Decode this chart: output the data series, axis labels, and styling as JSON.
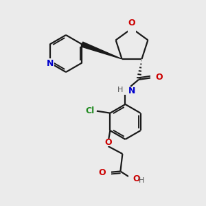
{
  "bg_color": "#ebebeb",
  "bond_color": "#1a1a1a",
  "O_color": "#cc0000",
  "N_color": "#0000cc",
  "Cl_color": "#228b22",
  "H_color": "#555555",
  "line_width": 1.6,
  "figsize": [
    3.0,
    3.0
  ],
  "dpi": 100,
  "xlim": [
    0,
    10
  ],
  "ylim": [
    0,
    10
  ]
}
